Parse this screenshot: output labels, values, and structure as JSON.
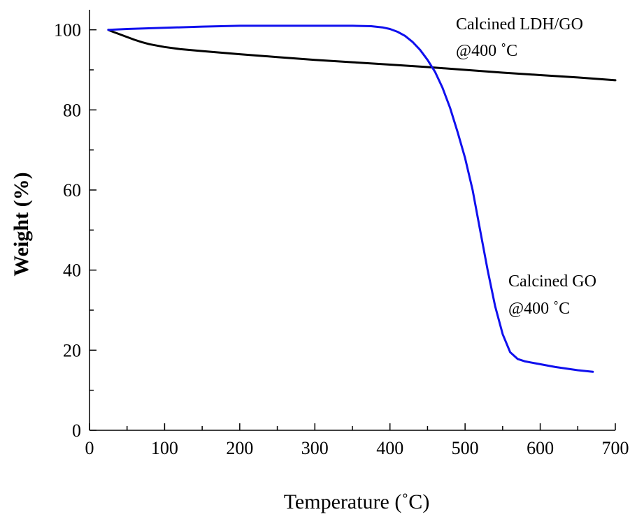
{
  "chart_data": {
    "type": "line",
    "title": "",
    "xlabel": "Temperature (˚C)",
    "ylabel": "Weight (%)",
    "xlim": [
      0,
      700
    ],
    "ylim": [
      0,
      105
    ],
    "xticks": [
      0,
      100,
      200,
      300,
      400,
      500,
      600,
      700
    ],
    "yticks": [
      0,
      20,
      40,
      60,
      80,
      100
    ],
    "x_minor_step": 50,
    "y_minor_step": 10,
    "grid": false,
    "legend": "none",
    "series": [
      {
        "label_lines": [
          "Calcined LDH/GO",
          "@400 ˚C"
        ],
        "color": "#000000",
        "x": [
          25,
          30,
          40,
          50,
          60,
          70,
          80,
          100,
          120,
          150,
          200,
          250,
          300,
          350,
          400,
          450,
          500,
          550,
          600,
          650,
          700
        ],
        "y": [
          100,
          99.6,
          98.9,
          98.2,
          97.5,
          96.9,
          96.4,
          95.7,
          95.2,
          94.7,
          93.9,
          93.2,
          92.5,
          91.9,
          91.3,
          90.7,
          90.0,
          89.3,
          88.7,
          88.1,
          87.4
        ]
      },
      {
        "label_lines": [
          "Calcined GO",
          "@400 ˚C"
        ],
        "color": "#1010ee",
        "x": [
          25,
          50,
          100,
          150,
          200,
          250,
          300,
          350,
          375,
          390,
          400,
          410,
          420,
          430,
          440,
          450,
          460,
          470,
          480,
          490,
          500,
          510,
          520,
          530,
          540,
          550,
          560,
          570,
          580,
          600,
          620,
          650,
          670
        ],
        "y": [
          100,
          100.2,
          100.5,
          100.8,
          101,
          101,
          101,
          101,
          100.9,
          100.6,
          100.2,
          99.5,
          98.5,
          97.0,
          95.0,
          92.5,
          89.5,
          85.5,
          80.5,
          74.5,
          68.0,
          60.0,
          50.0,
          40.0,
          31.0,
          24.0,
          19.5,
          17.8,
          17.2,
          16.5,
          15.8,
          15.0,
          14.6
        ]
      }
    ]
  }
}
